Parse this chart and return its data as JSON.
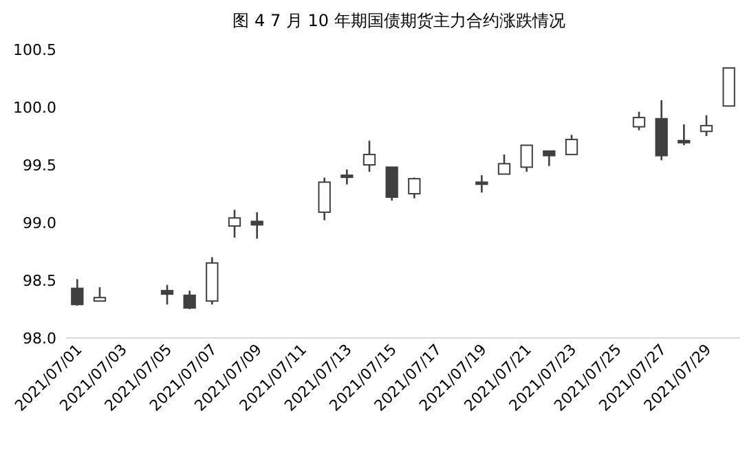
{
  "chart_data": {
    "type": "candlestick",
    "title": "图 4   7 月 10 年期国债期货主力合约涨跌情况",
    "x": [
      "2021-07-01",
      "2021-07-02",
      "2021-07-05",
      "2021-07-06",
      "2021-07-07",
      "2021-07-08",
      "2021-07-09",
      "2021-07-12",
      "2021-07-13",
      "2021-07-14",
      "2021-07-15",
      "2021-07-16",
      "2021-07-19",
      "2021-07-20",
      "2021-07-21",
      "2021-07-22",
      "2021-07-23",
      "2021-07-26",
      "2021-07-27",
      "2021-07-28",
      "2021-07-29",
      "2021-07-30"
    ],
    "ohlc": [
      [
        98.43,
        98.51,
        98.28,
        98.29
      ],
      [
        98.32,
        98.44,
        98.32,
        98.35
      ],
      [
        98.41,
        98.46,
        98.29,
        98.38
      ],
      [
        98.37,
        98.41,
        98.25,
        98.26
      ],
      [
        98.32,
        98.7,
        98.29,
        98.65
      ],
      [
        98.97,
        99.11,
        98.87,
        99.04
      ],
      [
        99.01,
        99.09,
        98.86,
        98.98
      ],
      [
        99.09,
        99.39,
        99.02,
        99.35
      ],
      [
        99.41,
        99.46,
        99.33,
        99.41
      ],
      [
        99.5,
        99.71,
        99.44,
        99.59
      ],
      [
        99.48,
        99.48,
        99.19,
        99.22
      ],
      [
        99.25,
        99.39,
        99.21,
        99.38
      ],
      [
        99.35,
        99.41,
        99.26,
        99.35
      ],
      [
        99.42,
        99.59,
        99.42,
        99.51
      ],
      [
        99.48,
        99.67,
        99.44,
        99.67
      ],
      [
        99.62,
        99.62,
        99.49,
        99.58
      ],
      [
        99.59,
        99.76,
        99.59,
        99.72
      ],
      [
        99.83,
        99.96,
        99.8,
        99.91
      ],
      [
        99.9,
        100.06,
        99.54,
        99.58
      ],
      [
        99.71,
        99.85,
        99.67,
        99.7
      ],
      [
        99.79,
        99.93,
        99.75,
        99.84
      ],
      [
        100.01,
        100.34,
        100.01,
        100.34
      ]
    ],
    "color": "#404040",
    "xlim": [
      "2021-06-30T12:00",
      "2021-07-30T12:00"
    ],
    "xticks": [
      {
        "value": "2021-07-01",
        "label": "2021/07/01"
      },
      {
        "value": "2021-07-03",
        "label": "2021/07/03"
      },
      {
        "value": "2021-07-05",
        "label": "2021/07/05"
      },
      {
        "value": "2021-07-07",
        "label": "2021/07/07"
      },
      {
        "value": "2021-07-09",
        "label": "2021/07/09"
      },
      {
        "value": "2021-07-11",
        "label": "2021/07/11"
      },
      {
        "value": "2021-07-13",
        "label": "2021/07/13"
      },
      {
        "value": "2021-07-15",
        "label": "2021/07/15"
      },
      {
        "value": "2021-07-17",
        "label": "2021/07/17"
      },
      {
        "value": "2021-07-19",
        "label": "2021/07/19"
      },
      {
        "value": "2021-07-21",
        "label": "2021/07/21"
      },
      {
        "value": "2021-07-23",
        "label": "2021/07/23"
      },
      {
        "value": "2021-07-25",
        "label": "2021/07/25"
      },
      {
        "value": "2021-07-27",
        "label": "2021/07/27"
      },
      {
        "value": "2021-07-29",
        "label": "2021/07/29"
      }
    ],
    "ylim": [
      98,
      100.5
    ],
    "yticks": [
      {
        "value": 98,
        "label": "98.0"
      },
      {
        "value": 98.5,
        "label": "98.5"
      },
      {
        "value": 99,
        "label": "99.0"
      },
      {
        "value": 99.5,
        "label": "99.5"
      },
      {
        "value": 100,
        "label": "100.0"
      },
      {
        "value": 100.5,
        "label": "100.5"
      }
    ]
  }
}
